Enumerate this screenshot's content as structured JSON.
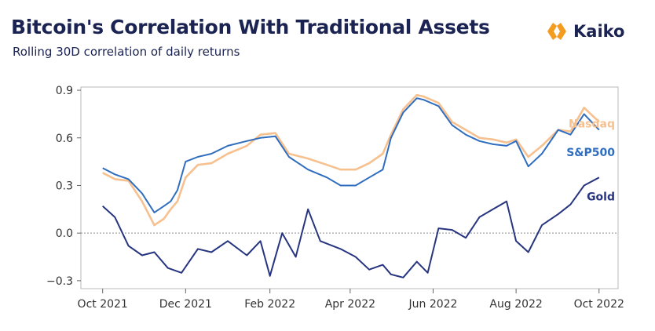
{
  "header": {
    "title": "Bitcoin's Correlation With Traditional Assets",
    "subtitle": "Rolling 30D correlation of daily returns"
  },
  "brand": {
    "name": "Kaiko",
    "logo_icon": "kaiko-logo-icon",
    "logo_color": "#f39c1f"
  },
  "colors": {
    "nasdaq": "#f6c08f",
    "sp500": "#2f6dbf",
    "gold": "#273580"
  },
  "chart_data": {
    "type": "line",
    "title": "Bitcoin's Correlation With Traditional Assets",
    "subtitle": "Rolling 30D correlation of daily returns",
    "xlabel": "",
    "ylabel": "",
    "xlim": [
      "2021-09-15",
      "2022-10-15"
    ],
    "ylim": [
      -0.35,
      0.92
    ],
    "x_ticks": [
      "2021-10-01",
      "2021-12-01",
      "2022-02-01",
      "2022-04-01",
      "2022-06-01",
      "2022-08-01",
      "2022-10-01"
    ],
    "x_tick_labels": [
      "Oct 2021",
      "Dec 2021",
      "Feb 2022",
      "Apr 2022",
      "Jun 2022",
      "Aug 2022",
      "Oct 2022"
    ],
    "y_ticks": [
      0.9,
      0.6,
      0.3,
      0.0,
      -0.3
    ],
    "y_tick_labels": [
      "0.9",
      "0.6",
      "0.3",
      "0.0",
      "−0.3"
    ],
    "zero_line": "dotted",
    "grid": false,
    "legend": "inline labels at right end of each series",
    "series": [
      {
        "name": "Nasdaq",
        "x": [
          "2021-10-01",
          "2021-10-10",
          "2021-10-20",
          "2021-10-30",
          "2021-11-08",
          "2021-11-15",
          "2021-11-20",
          "2021-11-25",
          "2021-12-01",
          "2021-12-10",
          "2021-12-20",
          "2022-01-01",
          "2022-01-15",
          "2022-01-25",
          "2022-02-05",
          "2022-02-15",
          "2022-03-01",
          "2022-03-15",
          "2022-03-25",
          "2022-04-05",
          "2022-04-15",
          "2022-04-25",
          "2022-05-01",
          "2022-05-10",
          "2022-05-20",
          "2022-05-25",
          "2022-06-05",
          "2022-06-15",
          "2022-06-25",
          "2022-07-05",
          "2022-07-15",
          "2022-07-25",
          "2022-08-01",
          "2022-08-10",
          "2022-08-20",
          "2022-09-01",
          "2022-09-10",
          "2022-09-20",
          "2022-10-01"
        ],
        "y": [
          0.38,
          0.34,
          0.33,
          0.2,
          0.05,
          0.09,
          0.15,
          0.2,
          0.35,
          0.43,
          0.44,
          0.5,
          0.55,
          0.62,
          0.63,
          0.5,
          0.47,
          0.43,
          0.4,
          0.4,
          0.44,
          0.5,
          0.62,
          0.78,
          0.87,
          0.86,
          0.82,
          0.7,
          0.65,
          0.6,
          0.59,
          0.57,
          0.59,
          0.48,
          0.55,
          0.65,
          0.64,
          0.79,
          0.7
        ]
      },
      {
        "name": "S&P500",
        "x": [
          "2021-10-01",
          "2021-10-10",
          "2021-10-20",
          "2021-10-30",
          "2021-11-08",
          "2021-11-15",
          "2021-11-20",
          "2021-11-25",
          "2021-12-01",
          "2021-12-10",
          "2021-12-20",
          "2022-01-01",
          "2022-01-15",
          "2022-01-25",
          "2022-02-05",
          "2022-02-15",
          "2022-03-01",
          "2022-03-15",
          "2022-03-25",
          "2022-04-05",
          "2022-04-15",
          "2022-04-25",
          "2022-05-01",
          "2022-05-10",
          "2022-05-20",
          "2022-05-25",
          "2022-06-05",
          "2022-06-15",
          "2022-06-25",
          "2022-07-05",
          "2022-07-15",
          "2022-07-25",
          "2022-08-01",
          "2022-08-10",
          "2022-08-20",
          "2022-09-01",
          "2022-09-10",
          "2022-09-20",
          "2022-10-01"
        ],
        "y": [
          0.41,
          0.37,
          0.34,
          0.25,
          0.13,
          0.17,
          0.2,
          0.27,
          0.45,
          0.48,
          0.5,
          0.55,
          0.58,
          0.6,
          0.61,
          0.48,
          0.4,
          0.35,
          0.3,
          0.3,
          0.35,
          0.4,
          0.6,
          0.76,
          0.85,
          0.84,
          0.8,
          0.68,
          0.62,
          0.58,
          0.56,
          0.55,
          0.58,
          0.42,
          0.5,
          0.65,
          0.62,
          0.75,
          0.65
        ]
      },
      {
        "name": "Gold",
        "x": [
          "2021-10-01",
          "2021-10-10",
          "2021-10-20",
          "2021-10-30",
          "2021-11-08",
          "2021-11-18",
          "2021-11-28",
          "2021-12-10",
          "2021-12-20",
          "2022-01-01",
          "2022-01-15",
          "2022-01-25",
          "2022-02-01",
          "2022-02-10",
          "2022-02-20",
          "2022-03-01",
          "2022-03-10",
          "2022-03-25",
          "2022-04-05",
          "2022-04-15",
          "2022-04-25",
          "2022-05-01",
          "2022-05-10",
          "2022-05-20",
          "2022-05-28",
          "2022-06-05",
          "2022-06-15",
          "2022-06-25",
          "2022-07-05",
          "2022-07-15",
          "2022-07-25",
          "2022-08-01",
          "2022-08-10",
          "2022-08-20",
          "2022-09-01",
          "2022-09-10",
          "2022-09-20",
          "2022-10-01"
        ],
        "y": [
          0.17,
          0.1,
          -0.08,
          -0.14,
          -0.12,
          -0.22,
          -0.25,
          -0.1,
          -0.12,
          -0.05,
          -0.14,
          -0.05,
          -0.27,
          0.0,
          -0.15,
          0.15,
          -0.05,
          -0.1,
          -0.15,
          -0.23,
          -0.2,
          -0.26,
          -0.28,
          -0.18,
          -0.25,
          0.03,
          0.02,
          -0.03,
          0.1,
          0.15,
          0.2,
          -0.05,
          -0.12,
          0.05,
          0.12,
          0.18,
          0.3,
          0.35
        ]
      }
    ]
  }
}
